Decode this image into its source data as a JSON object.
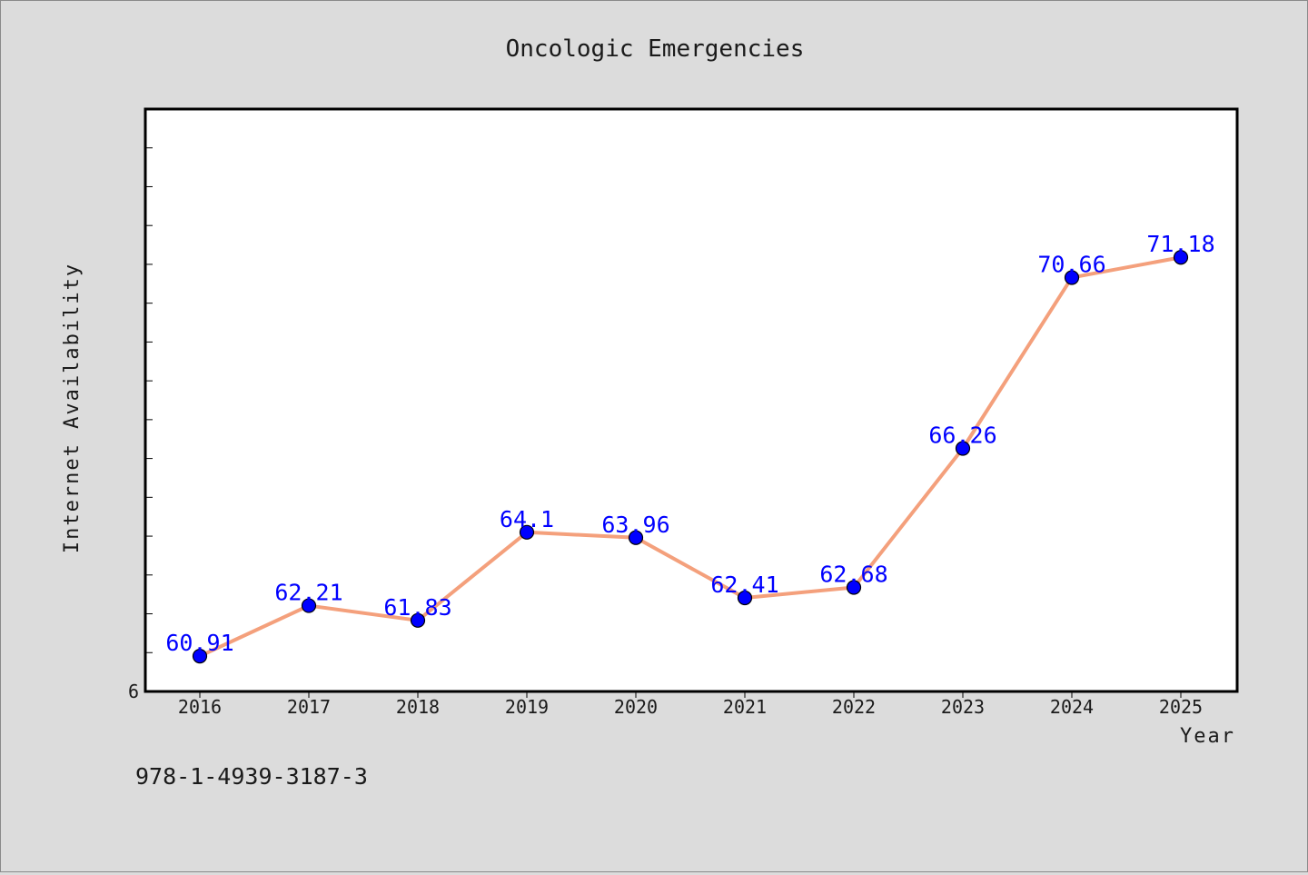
{
  "chart_data": {
    "type": "line",
    "title": "Oncologic Emergencies",
    "xlabel": "Year",
    "ylabel": "Internet Availability",
    "x": [
      "2016",
      "2017",
      "2018",
      "2019",
      "2020",
      "2021",
      "2022",
      "2023",
      "2024",
      "2025"
    ],
    "values": [
      60.91,
      62.21,
      61.83,
      64.1,
      63.96,
      62.41,
      62.68,
      66.26,
      70.66,
      71.18
    ],
    "data_labels": [
      "60.91",
      "62.21",
      "61.83",
      "64.1",
      "63.96",
      "62.41",
      "62.68",
      "66.26",
      "70.66",
      "71.18"
    ],
    "ylim": [
      60.0,
      75.0
    ],
    "y_tick_label": "6",
    "y_minor_tick_step": 1.0,
    "line_color": "#f4a07c",
    "marker_color": "#0000ff",
    "label_color": "#0000ff",
    "plot_background": "#ffffff",
    "figure_background": "#dcdcdc",
    "grid": false,
    "legend": "none"
  },
  "footer_text": "978-1-4939-3187-3"
}
